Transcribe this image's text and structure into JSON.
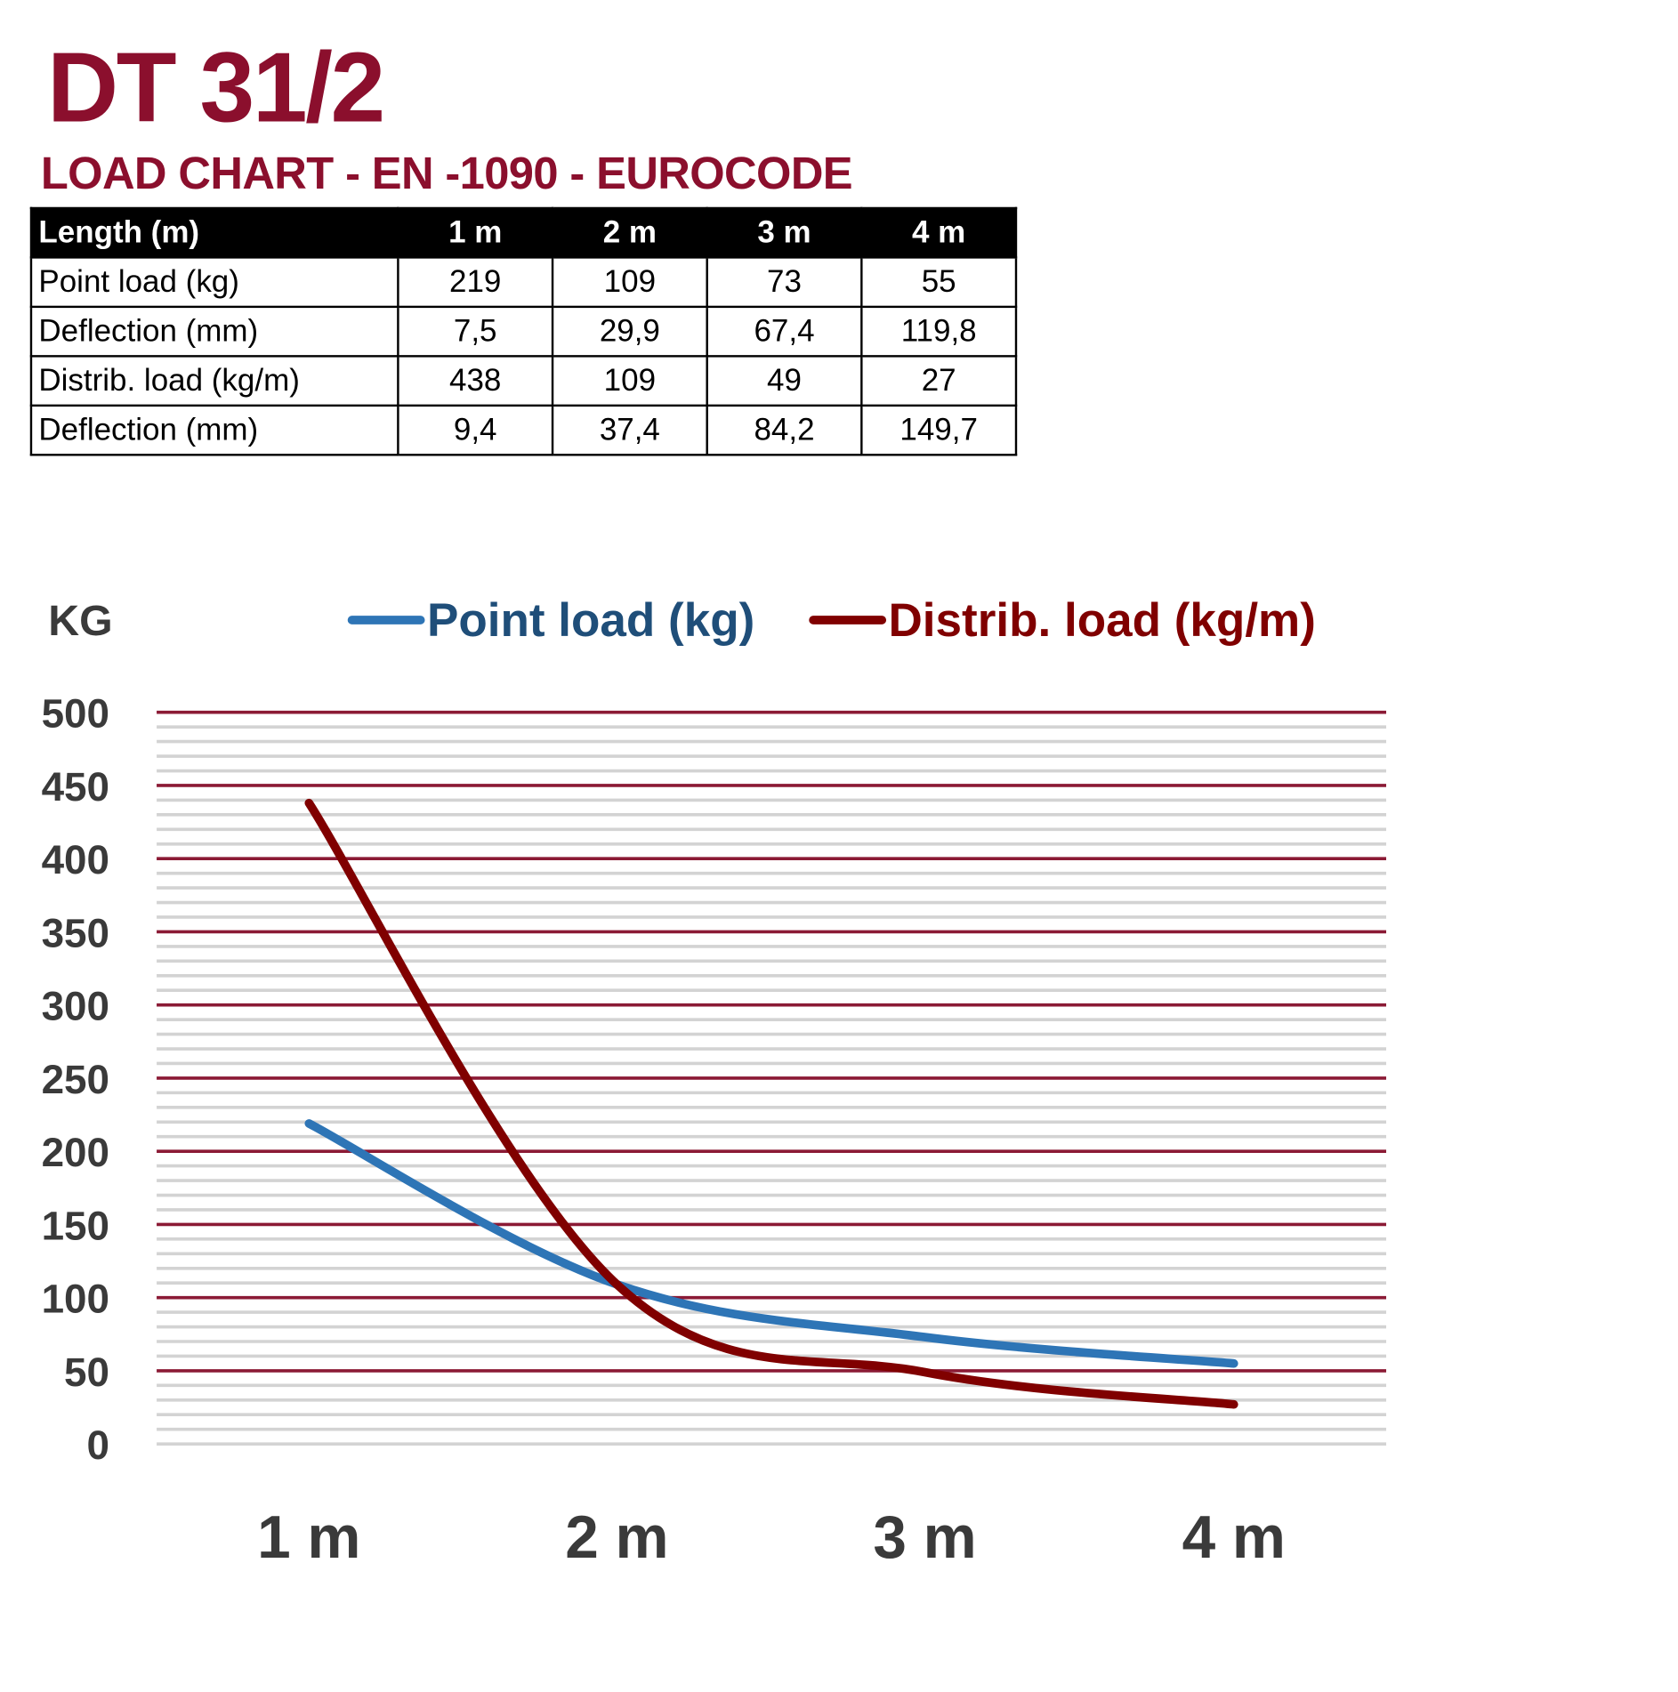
{
  "title": "DT 31/2",
  "subtitle": "LOAD CHART - EN -1090 - EUROCODE",
  "table": {
    "headers": [
      "Length (m)",
      "1 m",
      "2 m",
      "3 m",
      "4 m"
    ],
    "rows": [
      [
        "Point load (kg)",
        "219",
        "109",
        "73",
        "55"
      ],
      [
        "Deflection (mm)",
        "7,5",
        "29,9",
        "67,4",
        "119,8"
      ],
      [
        "Distrib. load (kg/m)",
        "438",
        "109",
        "49",
        "27"
      ],
      [
        "Deflection (mm)",
        "9,4",
        "37,4",
        "84,2",
        "149,7"
      ]
    ]
  },
  "chart_data": {
    "type": "line",
    "ylabel": "KG",
    "categories": [
      "1 m",
      "2 m",
      "3 m",
      "4 m"
    ],
    "ylim": [
      0,
      500
    ],
    "yticks": [
      "0",
      "50",
      "100",
      "150",
      "200",
      "250",
      "300",
      "350",
      "400",
      "450",
      "500"
    ],
    "grid": {
      "major_every": 50,
      "minor_every": 10,
      "major_color": "#8b1a35",
      "minor_color": "#d3d3d3"
    },
    "legend_position": "top",
    "smooth": true,
    "series": [
      {
        "name": "Point load (kg)",
        "values": [
          219,
          109,
          73,
          55
        ],
        "color": "#2e75b6"
      },
      {
        "name": "Distrib. load (kg/m)",
        "values": [
          438,
          109,
          49,
          27
        ],
        "color": "#800000"
      }
    ]
  }
}
